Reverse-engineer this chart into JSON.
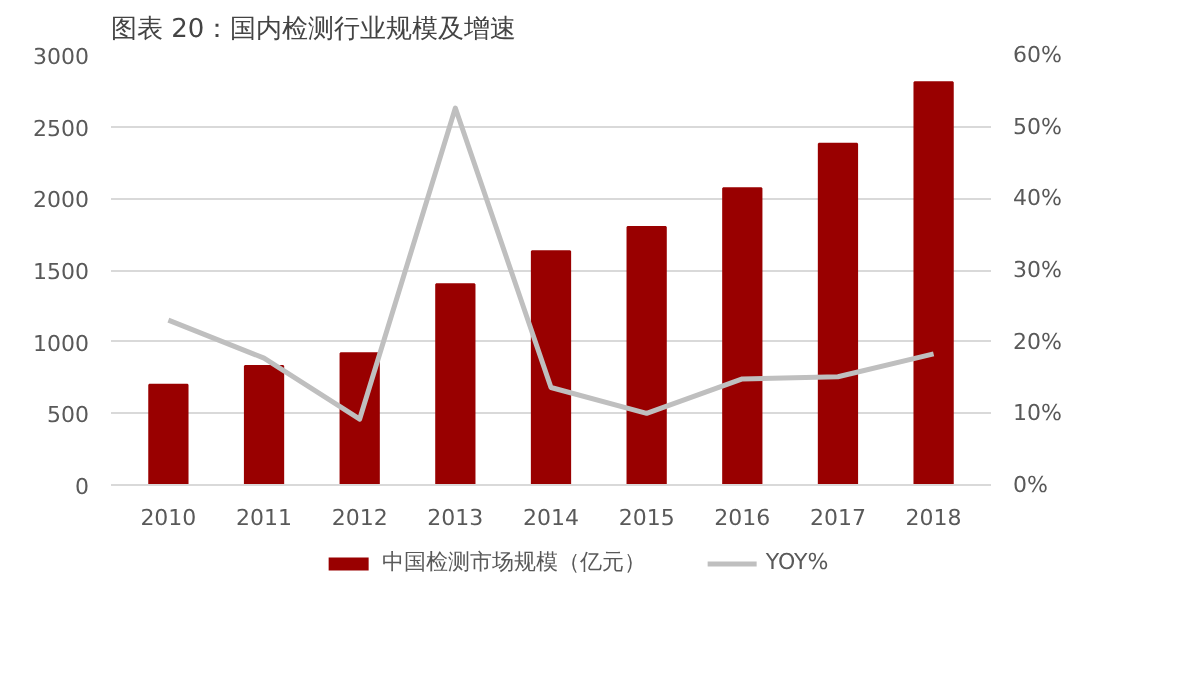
{
  "chart_data": {
    "type": "bar",
    "title": "图表 20：国内检测行业规模及增速",
    "categories": [
      "2010",
      "2011",
      "2012",
      "2013",
      "2014",
      "2015",
      "2016",
      "2017",
      "2018"
    ],
    "series": [
      {
        "name": "中国检测市场规模（亿元）",
        "color": "#990000",
        "values": [
          700,
          830,
          920,
          1400,
          1630,
          1800,
          2070,
          2380,
          2810
        ]
      },
      {
        "name": "YOY%",
        "type": "line",
        "axis": "y2",
        "color": "#bfbfbf",
        "values": [
          23,
          17.7,
          9.2,
          52.6,
          13.6,
          10,
          14.8,
          15.1,
          18.3
        ]
      }
    ],
    "ylim": [
      0,
      3000
    ],
    "yticks": [
      0,
      500,
      1000,
      1500,
      2000,
      2500,
      3000
    ],
    "y2lim": [
      0,
      60
    ],
    "y2ticks": [
      {
        "value": 0,
        "label": "0%"
      },
      {
        "value": 10,
        "label": "10%"
      },
      {
        "value": 20,
        "label": "20%"
      },
      {
        "value": 30,
        "label": "30%"
      },
      {
        "value": 40,
        "label": "40%"
      },
      {
        "value": 50,
        "label": "50%"
      },
      {
        "value": 60,
        "label": "60%"
      }
    ],
    "grid": "y",
    "legend": "bottom"
  }
}
